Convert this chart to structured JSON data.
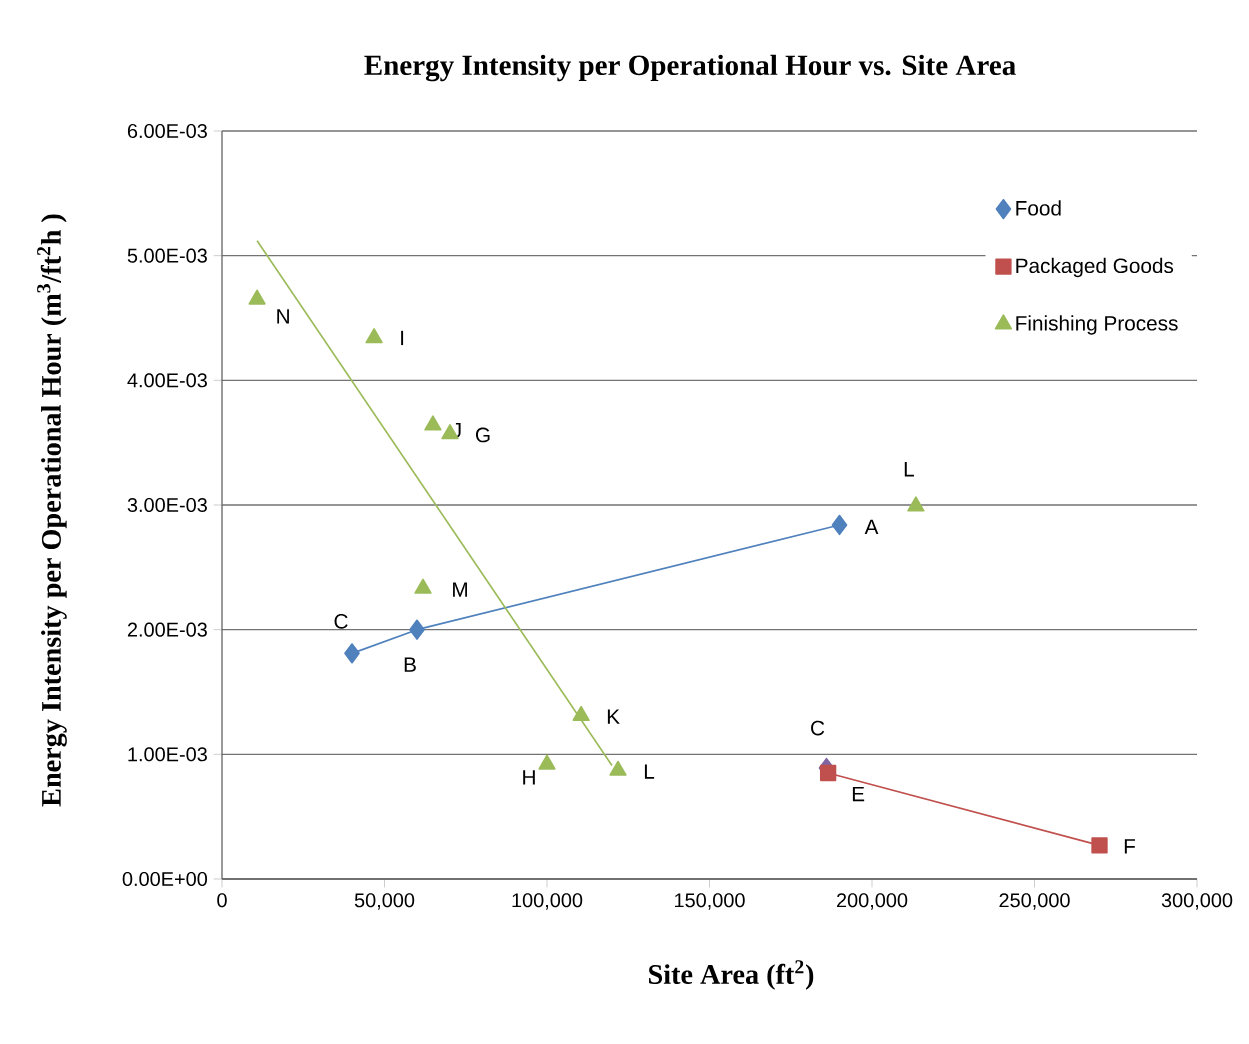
{
  "chart_data": {
    "type": "scatter",
    "title": "Energy Intensity per Operational Hour vs. Site Area",
    "xlabel": "Site Area (ft$^{2}$)",
    "ylabel": "Energy Intensity per Operational Hour  (m$^{3}$/ft$^{2}$h )",
    "xlim": [
      0,
      300000
    ],
    "ylim": [
      0,
      0.006
    ],
    "xticks": [
      0,
      {
        "value": 50000,
        "label": "50,000"
      },
      {
        "value": 100000,
        "label": "100,000"
      },
      {
        "value": 150000,
        "label": "150,000"
      },
      {
        "value": 200000,
        "label": "200,000"
      },
      {
        "value": 250000,
        "label": "250,000"
      },
      {
        "value": 300000,
        "label": "300,000"
      }
    ],
    "yticks": [
      {
        "value": 0,
        "label": "0.00E+00"
      },
      {
        "value": 0.001,
        "label": "1.00E-03"
      },
      {
        "value": 0.002,
        "label": "2.00E-03"
      },
      {
        "value": 0.003,
        "label": "3.00E-03"
      },
      {
        "value": 0.004,
        "label": "4.00E-03"
      },
      {
        "value": 0.005,
        "label": "5.00E-03"
      },
      {
        "value": 0.006,
        "label": "6.00E-03"
      }
    ],
    "grid": "y",
    "legend": "top right",
    "series": [
      {
        "name": "Food",
        "marker": "diamond",
        "color": "#4f81bd",
        "x": [
          40000,
          60000,
          190000
        ],
        "values": [
          0.00181,
          0.002,
          0.00284
        ]
      },
      {
        "marker": "diamond",
        "color": "#8064a2",
        "x": [
          186000
        ],
        "values": [
          0.00089
        ]
      },
      {
        "name": "Packaged Goods",
        "type": "line",
        "marker": "square",
        "color": "#c0504d",
        "x": [
          186500,
          270000
        ],
        "values": [
          0.00085,
          0.00027
        ]
      },
      {
        "name": "Finishing Process",
        "marker": "triangle",
        "color": "#9bbb59",
        "x": [
          10800,
          46800,
          64900,
          70150,
          61850,
          110500,
          100000,
          121850,
          213500
        ],
        "values": [
          0.00465,
          0.00434,
          0.00364,
          0.00357,
          0.00233,
          0.00131,
          0.00092,
          0.00087,
          0.00299
        ]
      },
      {
        "type": "line",
        "marker": "none",
        "color": "#4f81bd",
        "x": [
          40000,
          60000,
          190000
        ],
        "values": [
          0.00181,
          0.002,
          0.00284
        ]
      },
      {
        "type": "line",
        "marker": "none",
        "color": "#9bbb59",
        "x": [
          10800,
          120000
        ],
        "values": [
          0.00512,
          0.00091
        ]
      }
    ],
    "annotations": [
      {
        "text": "C",
        "x": 40000,
        "y": 0.00181
      },
      {
        "text": "B",
        "x": 60000,
        "y": 0.002
      },
      {
        "text": "A",
        "x": 190000,
        "y": 0.00284
      },
      {
        "text": "C",
        "x": 186000,
        "y": 0.00089
      },
      {
        "text": "E",
        "x": 186500,
        "y": 0.00085
      },
      {
        "text": "F",
        "x": 270000,
        "y": 0.00027
      },
      {
        "text": "N",
        "x": 10800,
        "y": 0.00465
      },
      {
        "text": "I",
        "x": 46800,
        "y": 0.00434
      },
      {
        "text": "J",
        "x": 64900,
        "y": 0.00364
      },
      {
        "text": "G",
        "x": 70150,
        "y": 0.00357
      },
      {
        "text": "M",
        "x": 61850,
        "y": 0.00233
      },
      {
        "text": "K",
        "x": 110500,
        "y": 0.00131
      },
      {
        "text": "H",
        "x": 100000,
        "y": 0.00092
      },
      {
        "text": "L",
        "x": 121850,
        "y": 0.00087
      },
      {
        "text": "L",
        "x": 213500,
        "y": 0.00299
      }
    ]
  }
}
